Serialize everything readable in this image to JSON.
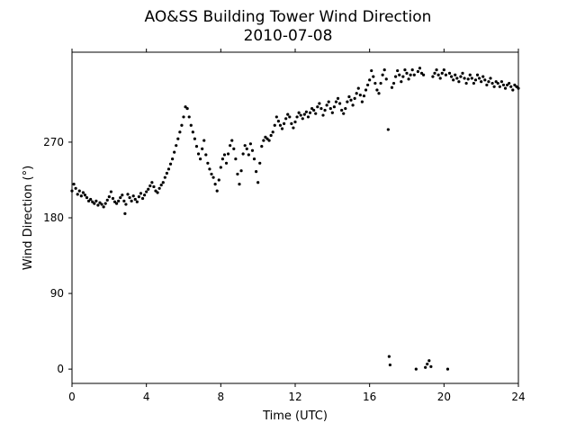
{
  "chart_data": {
    "type": "scatter",
    "title": "AO&SS Building Tower Wind Direction",
    "subtitle": "2010-07-08",
    "xlabel": "Time (UTC)",
    "ylabel": "Wind Direction (°)",
    "xlim": [
      0,
      24
    ],
    "ylim": [
      -17,
      377
    ],
    "xticks": [
      0,
      4,
      8,
      12,
      16,
      20,
      24
    ],
    "yticks": [
      0,
      90,
      180,
      270
    ],
    "grid": false,
    "legend": "none",
    "marker_color": "#000000",
    "series": [
      {
        "points": [
          [
            0.0,
            212
          ],
          [
            0.1,
            220
          ],
          [
            0.2,
            215
          ],
          [
            0.3,
            208
          ],
          [
            0.4,
            212
          ],
          [
            0.5,
            206
          ],
          [
            0.6,
            210
          ],
          [
            0.7,
            207
          ],
          [
            0.8,
            204
          ],
          [
            0.9,
            200
          ],
          [
            1.0,
            202
          ],
          [
            1.1,
            199
          ],
          [
            1.2,
            197
          ],
          [
            1.3,
            200
          ],
          [
            1.4,
            195
          ],
          [
            1.5,
            198
          ],
          [
            1.6,
            196
          ],
          [
            1.7,
            193
          ],
          [
            1.8,
            197
          ],
          [
            1.9,
            201
          ],
          [
            2.0,
            205
          ],
          [
            2.1,
            211
          ],
          [
            2.2,
            203
          ],
          [
            2.3,
            199
          ],
          [
            2.4,
            197
          ],
          [
            2.5,
            200
          ],
          [
            2.6,
            204
          ],
          [
            2.7,
            207
          ],
          [
            2.8,
            200
          ],
          [
            2.85,
            185
          ],
          [
            2.9,
            196
          ],
          [
            3.0,
            208
          ],
          [
            3.1,
            204
          ],
          [
            3.2,
            200
          ],
          [
            3.3,
            206
          ],
          [
            3.4,
            202
          ],
          [
            3.5,
            199
          ],
          [
            3.6,
            205
          ],
          [
            3.7,
            209
          ],
          [
            3.8,
            203
          ],
          [
            3.9,
            207
          ],
          [
            4.0,
            211
          ],
          [
            4.1,
            214
          ],
          [
            4.2,
            218
          ],
          [
            4.3,
            222
          ],
          [
            4.4,
            217
          ],
          [
            4.5,
            212
          ],
          [
            4.6,
            210
          ],
          [
            4.7,
            215
          ],
          [
            4.8,
            219
          ],
          [
            4.9,
            222
          ],
          [
            5.0,
            228
          ],
          [
            5.1,
            233
          ],
          [
            5.2,
            238
          ],
          [
            5.3,
            244
          ],
          [
            5.4,
            250
          ],
          [
            5.5,
            258
          ],
          [
            5.6,
            266
          ],
          [
            5.7,
            274
          ],
          [
            5.8,
            282
          ],
          [
            5.9,
            290
          ],
          [
            6.0,
            300
          ],
          [
            6.1,
            312
          ],
          [
            6.2,
            310
          ],
          [
            6.3,
            300
          ],
          [
            6.4,
            290
          ],
          [
            6.5,
            282
          ],
          [
            6.6,
            274
          ],
          [
            6.7,
            265
          ],
          [
            6.8,
            256
          ],
          [
            6.9,
            250
          ],
          [
            7.0,
            262
          ],
          [
            7.1,
            272
          ],
          [
            7.2,
            255
          ],
          [
            7.3,
            245
          ],
          [
            7.4,
            238
          ],
          [
            7.5,
            232
          ],
          [
            7.6,
            228
          ],
          [
            7.7,
            220
          ],
          [
            7.8,
            212
          ],
          [
            7.9,
            225
          ],
          [
            8.0,
            240
          ],
          [
            8.1,
            250
          ],
          [
            8.2,
            255
          ],
          [
            8.3,
            245
          ],
          [
            8.4,
            256
          ],
          [
            8.5,
            266
          ],
          [
            8.6,
            272
          ],
          [
            8.7,
            262
          ],
          [
            8.8,
            250
          ],
          [
            8.9,
            232
          ],
          [
            9.0,
            220
          ],
          [
            9.1,
            236
          ],
          [
            9.2,
            256
          ],
          [
            9.3,
            266
          ],
          [
            9.4,
            262
          ],
          [
            9.5,
            255
          ],
          [
            9.6,
            268
          ],
          [
            9.7,
            260
          ],
          [
            9.8,
            250
          ],
          [
            9.9,
            235
          ],
          [
            10.0,
            222
          ],
          [
            10.1,
            245
          ],
          [
            10.2,
            265
          ],
          [
            10.3,
            272
          ],
          [
            10.4,
            276
          ],
          [
            10.5,
            274
          ],
          [
            10.6,
            272
          ],
          [
            10.7,
            278
          ],
          [
            10.8,
            282
          ],
          [
            10.9,
            290
          ],
          [
            11.0,
            300
          ],
          [
            11.1,
            295
          ],
          [
            11.2,
            290
          ],
          [
            11.3,
            286
          ],
          [
            11.4,
            292
          ],
          [
            11.5,
            298
          ],
          [
            11.6,
            303
          ],
          [
            11.7,
            300
          ],
          [
            11.8,
            292
          ],
          [
            11.9,
            287
          ],
          [
            12.0,
            294
          ],
          [
            12.1,
            300
          ],
          [
            12.2,
            305
          ],
          [
            12.3,
            302
          ],
          [
            12.4,
            298
          ],
          [
            12.5,
            303
          ],
          [
            12.6,
            306
          ],
          [
            12.7,
            300
          ],
          [
            12.8,
            305
          ],
          [
            12.9,
            310
          ],
          [
            13.0,
            308
          ],
          [
            13.1,
            304
          ],
          [
            13.2,
            312
          ],
          [
            13.3,
            316
          ],
          [
            13.4,
            310
          ],
          [
            13.5,
            302
          ],
          [
            13.6,
            308
          ],
          [
            13.7,
            314
          ],
          [
            13.8,
            318
          ],
          [
            13.9,
            310
          ],
          [
            14.0,
            305
          ],
          [
            14.1,
            312
          ],
          [
            14.2,
            318
          ],
          [
            14.3,
            322
          ],
          [
            14.4,
            316
          ],
          [
            14.5,
            308
          ],
          [
            14.6,
            304
          ],
          [
            14.7,
            310
          ],
          [
            14.8,
            318
          ],
          [
            14.9,
            324
          ],
          [
            15.0,
            320
          ],
          [
            15.1,
            314
          ],
          [
            15.2,
            322
          ],
          [
            15.3,
            328
          ],
          [
            15.4,
            334
          ],
          [
            15.5,
            326
          ],
          [
            15.6,
            318
          ],
          [
            15.7,
            325
          ],
          [
            15.8,
            332
          ],
          [
            15.9,
            338
          ],
          [
            16.0,
            344
          ],
          [
            16.1,
            355
          ],
          [
            16.2,
            348
          ],
          [
            16.3,
            340
          ],
          [
            16.4,
            332
          ],
          [
            16.5,
            328
          ],
          [
            16.6,
            340
          ],
          [
            16.7,
            350
          ],
          [
            16.8,
            356
          ],
          [
            16.9,
            345
          ],
          [
            17.0,
            285
          ],
          [
            17.05,
            15
          ],
          [
            17.1,
            5
          ],
          [
            17.2,
            335
          ],
          [
            17.3,
            340
          ],
          [
            17.4,
            348
          ],
          [
            17.5,
            355
          ],
          [
            17.6,
            350
          ],
          [
            17.7,
            342
          ],
          [
            17.8,
            348
          ],
          [
            17.9,
            356
          ],
          [
            18.0,
            352
          ],
          [
            18.1,
            345
          ],
          [
            18.2,
            350
          ],
          [
            18.3,
            356
          ],
          [
            18.4,
            350
          ],
          [
            18.5,
            0
          ],
          [
            18.6,
            354
          ],
          [
            18.7,
            358
          ],
          [
            18.8,
            352
          ],
          [
            18.9,
            350
          ],
          [
            19.0,
            2
          ],
          [
            19.1,
            6
          ],
          [
            19.2,
            10
          ],
          [
            19.3,
            3
          ],
          [
            19.4,
            348
          ],
          [
            19.5,
            352
          ],
          [
            19.6,
            356
          ],
          [
            19.7,
            350
          ],
          [
            19.8,
            346
          ],
          [
            19.9,
            352
          ],
          [
            20.0,
            356
          ],
          [
            20.1,
            350
          ],
          [
            20.2,
            0
          ],
          [
            20.3,
            352
          ],
          [
            20.4,
            348
          ],
          [
            20.5,
            344
          ],
          [
            20.6,
            350
          ],
          [
            20.7,
            346
          ],
          [
            20.8,
            342
          ],
          [
            20.9,
            348
          ],
          [
            21.0,
            352
          ],
          [
            21.1,
            346
          ],
          [
            21.2,
            340
          ],
          [
            21.3,
            345
          ],
          [
            21.4,
            350
          ],
          [
            21.5,
            346
          ],
          [
            21.6,
            340
          ],
          [
            21.7,
            344
          ],
          [
            21.8,
            350
          ],
          [
            21.9,
            346
          ],
          [
            22.0,
            342
          ],
          [
            22.1,
            348
          ],
          [
            22.2,
            344
          ],
          [
            22.3,
            338
          ],
          [
            22.4,
            342
          ],
          [
            22.5,
            346
          ],
          [
            22.6,
            340
          ],
          [
            22.7,
            336
          ],
          [
            22.8,
            342
          ],
          [
            22.9,
            340
          ],
          [
            23.0,
            336
          ],
          [
            23.1,
            342
          ],
          [
            23.2,
            338
          ],
          [
            23.3,
            334
          ],
          [
            23.4,
            338
          ],
          [
            23.5,
            340
          ],
          [
            23.6,
            336
          ],
          [
            23.7,
            332
          ],
          [
            23.8,
            338
          ],
          [
            23.9,
            336
          ],
          [
            24.0,
            334
          ]
        ]
      }
    ]
  }
}
